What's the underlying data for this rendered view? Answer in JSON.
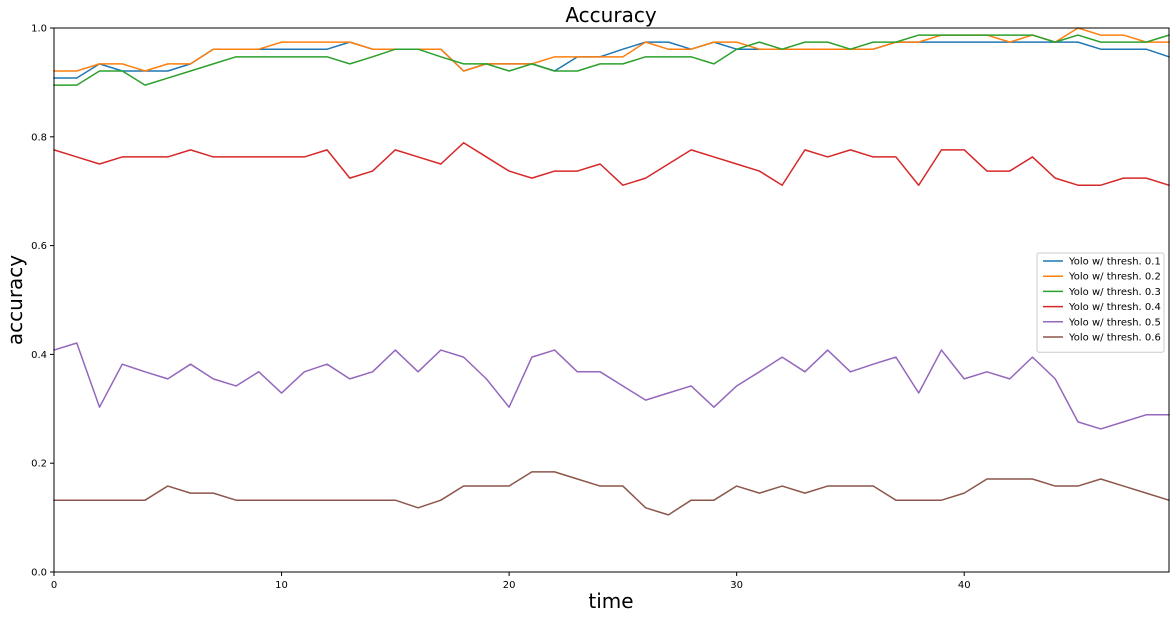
{
  "chart_data": {
    "type": "line",
    "title": "Accuracy",
    "xlabel": "time",
    "ylabel": "accuracy",
    "xlim": [
      0,
      49
    ],
    "ylim": [
      0.0,
      1.0
    ],
    "x_ticks": [
      0,
      10,
      20,
      30,
      40
    ],
    "y_ticks": [
      0.0,
      0.2,
      0.4,
      0.6,
      0.8,
      1.0
    ],
    "x_tick_labels": [
      "0",
      "10",
      "20",
      "30",
      "40"
    ],
    "y_tick_labels": [
      "0.0",
      "0.2",
      "0.4",
      "0.6",
      "0.8",
      "1.0"
    ],
    "grid": false,
    "legend_position": "center-right",
    "x": [
      0,
      1,
      2,
      3,
      4,
      5,
      6,
      7,
      8,
      9,
      10,
      11,
      12,
      13,
      14,
      15,
      16,
      17,
      18,
      19,
      20,
      21,
      22,
      23,
      24,
      25,
      26,
      27,
      28,
      29,
      30,
      31,
      32,
      33,
      34,
      35,
      36,
      37,
      38,
      39,
      40,
      41,
      42,
      43,
      44,
      45,
      46,
      47,
      48,
      49
    ],
    "series": [
      {
        "name": "Yolo w/ thresh. 0.1",
        "color": "#1f77b4",
        "values": [
          0.908,
          0.908,
          0.934,
          0.921,
          0.921,
          0.921,
          0.934,
          0.961,
          0.961,
          0.961,
          0.961,
          0.961,
          0.961,
          0.974,
          0.961,
          0.961,
          0.961,
          0.961,
          0.921,
          0.934,
          0.934,
          0.934,
          0.921,
          0.947,
          0.947,
          0.961,
          0.974,
          0.974,
          0.961,
          0.974,
          0.961,
          0.961,
          0.961,
          0.961,
          0.961,
          0.961,
          0.961,
          0.974,
          0.974,
          0.974,
          0.974,
          0.974,
          0.974,
          0.974,
          0.974,
          0.974,
          0.961,
          0.961,
          0.961,
          0.947
        ]
      },
      {
        "name": "Yolo w/ thresh. 0.2",
        "color": "#ff7f0e",
        "values": [
          0.921,
          0.921,
          0.934,
          0.934,
          0.921,
          0.934,
          0.934,
          0.961,
          0.961,
          0.961,
          0.974,
          0.974,
          0.974,
          0.974,
          0.961,
          0.961,
          0.961,
          0.961,
          0.921,
          0.934,
          0.934,
          0.934,
          0.947,
          0.947,
          0.947,
          0.947,
          0.974,
          0.961,
          0.961,
          0.974,
          0.974,
          0.961,
          0.961,
          0.961,
          0.961,
          0.961,
          0.961,
          0.974,
          0.974,
          0.987,
          0.987,
          0.987,
          0.974,
          0.987,
          0.974,
          1.0,
          0.987,
          0.987,
          0.974,
          0.974
        ]
      },
      {
        "name": "Yolo w/ thresh. 0.3",
        "color": "#2ca02c",
        "values": [
          0.895,
          0.895,
          0.921,
          0.921,
          0.895,
          0.908,
          0.921,
          0.934,
          0.947,
          0.947,
          0.947,
          0.947,
          0.947,
          0.934,
          0.947,
          0.961,
          0.961,
          0.947,
          0.934,
          0.934,
          0.921,
          0.934,
          0.921,
          0.921,
          0.934,
          0.934,
          0.947,
          0.947,
          0.947,
          0.934,
          0.961,
          0.974,
          0.961,
          0.974,
          0.974,
          0.961,
          0.974,
          0.974,
          0.987,
          0.987,
          0.987,
          0.987,
          0.987,
          0.987,
          0.974,
          0.987,
          0.974,
          0.974,
          0.974,
          0.987
        ]
      },
      {
        "name": "Yolo w/ thresh. 0.4",
        "color": "#d62728",
        "values": [
          0.776,
          0.763,
          0.75,
          0.763,
          0.763,
          0.763,
          0.776,
          0.763,
          0.763,
          0.763,
          0.763,
          0.763,
          0.776,
          0.724,
          0.737,
          0.776,
          0.763,
          0.75,
          0.789,
          0.763,
          0.737,
          0.724,
          0.737,
          0.737,
          0.75,
          0.711,
          0.724,
          0.75,
          0.776,
          0.763,
          0.75,
          0.737,
          0.711,
          0.776,
          0.763,
          0.776,
          0.763,
          0.763,
          0.711,
          0.776,
          0.776,
          0.737,
          0.737,
          0.763,
          0.724,
          0.711,
          0.711,
          0.724,
          0.724,
          0.711
        ]
      },
      {
        "name": "Yolo w/ thresh. 0.5",
        "color": "#9467bd",
        "values": [
          0.408,
          0.421,
          0.303,
          0.382,
          0.368,
          0.355,
          0.382,
          0.355,
          0.342,
          0.368,
          0.329,
          0.368,
          0.382,
          0.355,
          0.368,
          0.408,
          0.368,
          0.408,
          0.395,
          0.355,
          0.303,
          0.395,
          0.408,
          0.368,
          0.368,
          0.342,
          0.316,
          0.329,
          0.342,
          0.303,
          0.342,
          0.368,
          0.395,
          0.368,
          0.408,
          0.368,
          0.382,
          0.395,
          0.329,
          0.408,
          0.355,
          0.368,
          0.355,
          0.395,
          0.355,
          0.276,
          0.263,
          0.276,
          0.289,
          0.289
        ]
      },
      {
        "name": "Yolo w/ thresh. 0.6",
        "color": "#8c564b",
        "values": [
          0.132,
          0.132,
          0.132,
          0.132,
          0.132,
          0.158,
          0.145,
          0.145,
          0.132,
          0.132,
          0.132,
          0.132,
          0.132,
          0.132,
          0.132,
          0.132,
          0.118,
          0.132,
          0.158,
          0.158,
          0.158,
          0.184,
          0.184,
          0.171,
          0.158,
          0.158,
          0.118,
          0.105,
          0.132,
          0.132,
          0.158,
          0.145,
          0.158,
          0.145,
          0.158,
          0.158,
          0.158,
          0.132,
          0.132,
          0.132,
          0.145,
          0.171,
          0.171,
          0.171,
          0.158,
          0.158,
          0.171,
          0.158,
          0.145,
          0.132
        ]
      }
    ]
  }
}
